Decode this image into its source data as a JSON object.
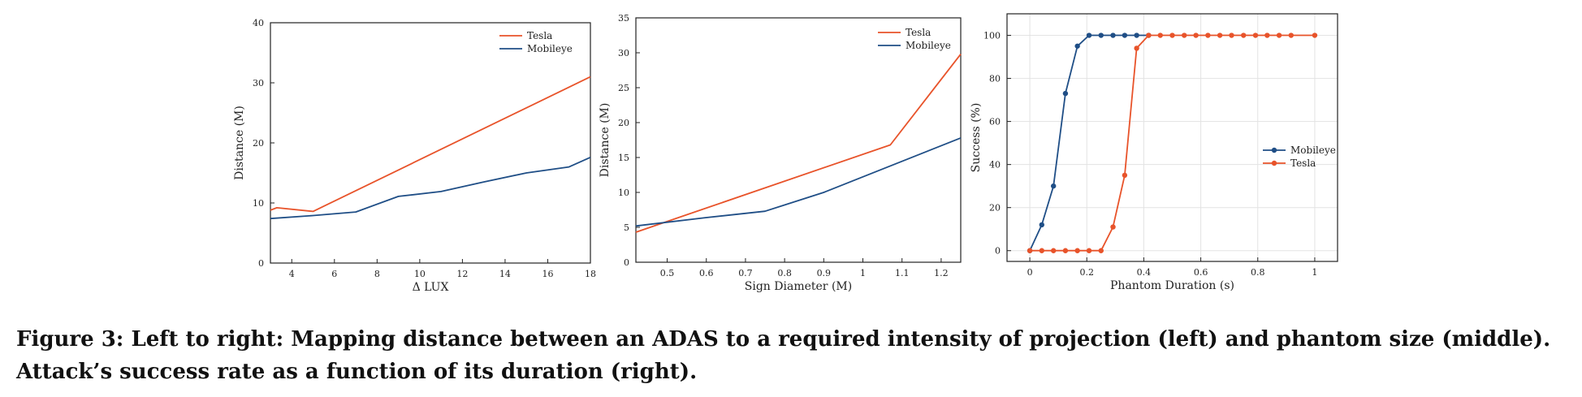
{
  "chart_data": [
    {
      "type": "line",
      "xlabel": "Δ LUX",
      "ylabel": "Distance (M)",
      "xlim": [
        3,
        18
      ],
      "ylim": [
        0,
        40
      ],
      "xticks": [
        4,
        6,
        8,
        10,
        12,
        14,
        16,
        18
      ],
      "yticks": [
        0,
        10,
        20,
        30,
        40
      ],
      "legend_position": "top-right",
      "grid": false,
      "series": [
        {
          "name": "Tesla",
          "color": "#e8532a",
          "x": [
            3,
            3.3,
            5,
            18
          ],
          "y": [
            8.8,
            9.2,
            8.6,
            31
          ]
        },
        {
          "name": "Mobileye",
          "color": "#1f4e86",
          "x": [
            3,
            5,
            7,
            9,
            11,
            13,
            15,
            17,
            18
          ],
          "y": [
            7.4,
            7.9,
            8.5,
            11.1,
            11.9,
            13.5,
            15,
            16,
            17.6
          ]
        }
      ]
    },
    {
      "type": "line",
      "xlabel": "Sign Diameter (M)",
      "ylabel": "Distance (M)",
      "xlim": [
        0.42,
        1.25
      ],
      "ylim": [
        0,
        35
      ],
      "xticks": [
        0.5,
        0.6,
        0.7,
        0.8,
        0.9,
        1,
        1.1,
        1.2
      ],
      "yticks": [
        0,
        5,
        10,
        15,
        20,
        25,
        30,
        35
      ],
      "legend_position": "top-right",
      "grid": false,
      "series": [
        {
          "name": "Tesla",
          "color": "#e8532a",
          "x": [
            0.42,
            1.07,
            1.25
          ],
          "y": [
            4.3,
            16.8,
            29.8
          ]
        },
        {
          "name": "Mobileye",
          "color": "#1f4e86",
          "x": [
            0.42,
            0.6,
            0.75,
            0.9,
            1.25
          ],
          "y": [
            5.2,
            6.4,
            7.3,
            10,
            17.8
          ]
        }
      ]
    },
    {
      "type": "line",
      "xlabel": "Phantom Duration (s)",
      "ylabel": "Success (%)",
      "xlim": [
        -0.08,
        1.08
      ],
      "ylim": [
        -5,
        110
      ],
      "xticks": [
        0,
        0.2,
        0.4,
        0.6,
        0.8,
        1
      ],
      "yticks": [
        0,
        20,
        40,
        60,
        80,
        100
      ],
      "legend_position": "center-right",
      "grid": true,
      "markers": true,
      "series": [
        {
          "name": "Mobileye",
          "color": "#1f4e86",
          "x": [
            0,
            0.042,
            0.083,
            0.125,
            0.167,
            0.208,
            0.25,
            0.292,
            0.333,
            0.375,
            0.417
          ],
          "y": [
            0,
            12,
            30,
            73,
            95,
            100,
            100,
            100,
            100,
            100,
            100
          ]
        },
        {
          "name": "Tesla",
          "color": "#e8532a",
          "x": [
            0,
            0.042,
            0.083,
            0.125,
            0.167,
            0.208,
            0.25,
            0.292,
            0.333,
            0.375,
            0.417,
            0.458,
            0.5,
            0.542,
            0.583,
            0.625,
            0.667,
            0.708,
            0.75,
            0.792,
            0.833,
            0.875,
            0.917,
            1
          ],
          "y": [
            0,
            0,
            0,
            0,
            0,
            0,
            0,
            11,
            35,
            94,
            100,
            100,
            100,
            100,
            100,
            100,
            100,
            100,
            100,
            100,
            100,
            100,
            100,
            100
          ]
        }
      ]
    }
  ],
  "caption": "Figure 3: Left to right: Mapping distance between an ADAS to a required intensity of projection (left) and phantom size (middle). Attack’s success rate as a function of its duration (right)."
}
